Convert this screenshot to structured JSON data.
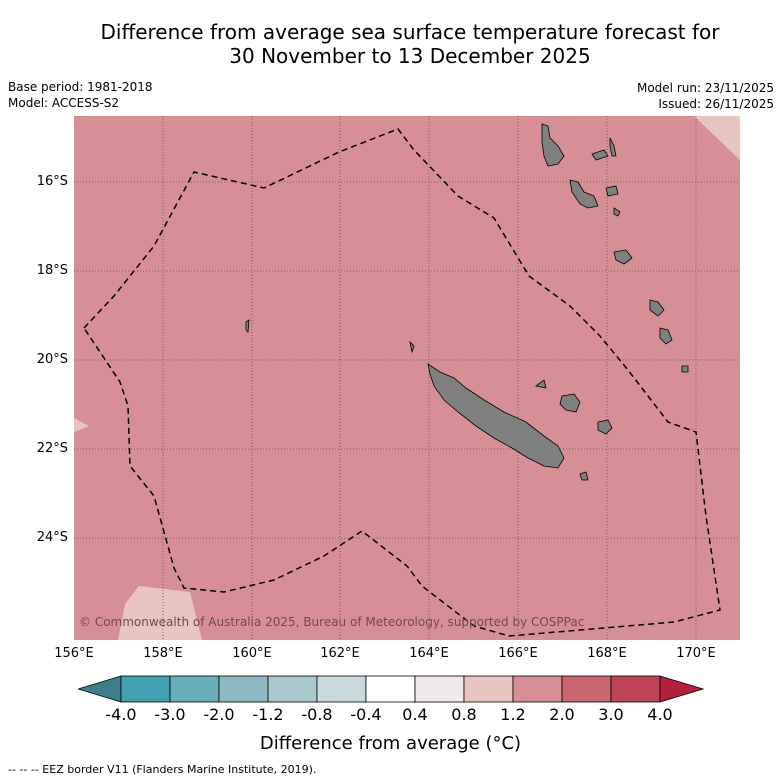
{
  "title": {
    "line1": "Difference from average sea surface temperature forecast for",
    "line2": "30 November to 13 December 2025"
  },
  "meta": {
    "base_period": "Base period: 1981-2018",
    "model": "Model: ACCESS-S2",
    "model_run": "Model run: 23/11/2025",
    "issued": "Issued: 26/11/2025"
  },
  "map": {
    "latitude_labels": [
      "16°S",
      "18°S",
      "20°S",
      "22°S",
      "24°S"
    ],
    "longitude_labels": [
      "156°E",
      "158°E",
      "160°E",
      "162°E",
      "164°E",
      "166°E",
      "168°E",
      "170°E"
    ],
    "copyright": "© Commonwealth of Australia 2025, Bureau of Meteorology, supported by COSPPac",
    "colors": {
      "ocean_fill": "#d68f95",
      "light_patch": "#e9c5c1",
      "land": "#808080",
      "grid": "#555555",
      "eez_line": "#000000"
    }
  },
  "colorbar": {
    "ticks": [
      "-4.0",
      "-3.0",
      "-2.0",
      "-1.2",
      "-0.8",
      "-0.4",
      "0.4",
      "0.8",
      "1.2",
      "2.0",
      "3.0",
      "4.0"
    ],
    "colors": [
      "#3d7e8a",
      "#43a0b0",
      "#68aebb",
      "#8dbac5",
      "#a8c8cd",
      "#c9dadd",
      "#ffffff",
      "#efe9e9",
      "#e9c5c1",
      "#d68f95",
      "#c9666f",
      "#bd4456",
      "#b4203c"
    ],
    "label": "Difference from average (°C)"
  },
  "footnote": "-- -- -- EEZ border V11 (Flanders Marine Institute, 2019)."
}
